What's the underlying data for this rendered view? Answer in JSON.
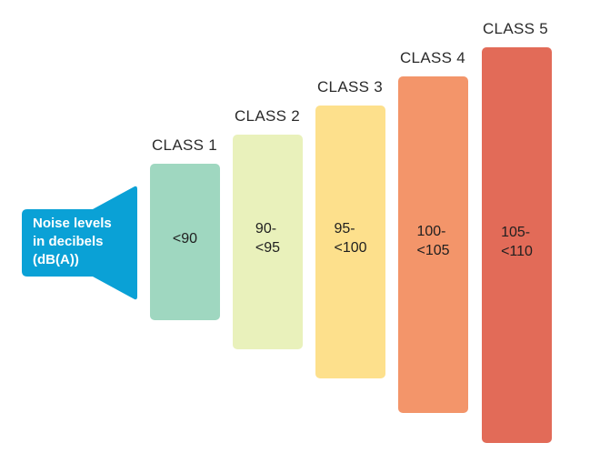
{
  "speaker": {
    "label": "Noise levels\nin decibels\n(dB(A))",
    "color": "#0aa1d6",
    "icon": "speaker-icon"
  },
  "classes": [
    {
      "title": "CLASS 1",
      "range": "<90",
      "color": "#9fd7c0"
    },
    {
      "title": "CLASS 2",
      "range": "90-\n<95",
      "color": "#e9f1bb"
    },
    {
      "title": "CLASS 3",
      "range": "95-\n<100",
      "color": "#fde08c"
    },
    {
      "title": "CLASS 4",
      "range": "100-\n<105",
      "color": "#f3956a"
    },
    {
      "title": "CLASS 5",
      "range": "105-\n<110",
      "color": "#e26b58"
    }
  ]
}
